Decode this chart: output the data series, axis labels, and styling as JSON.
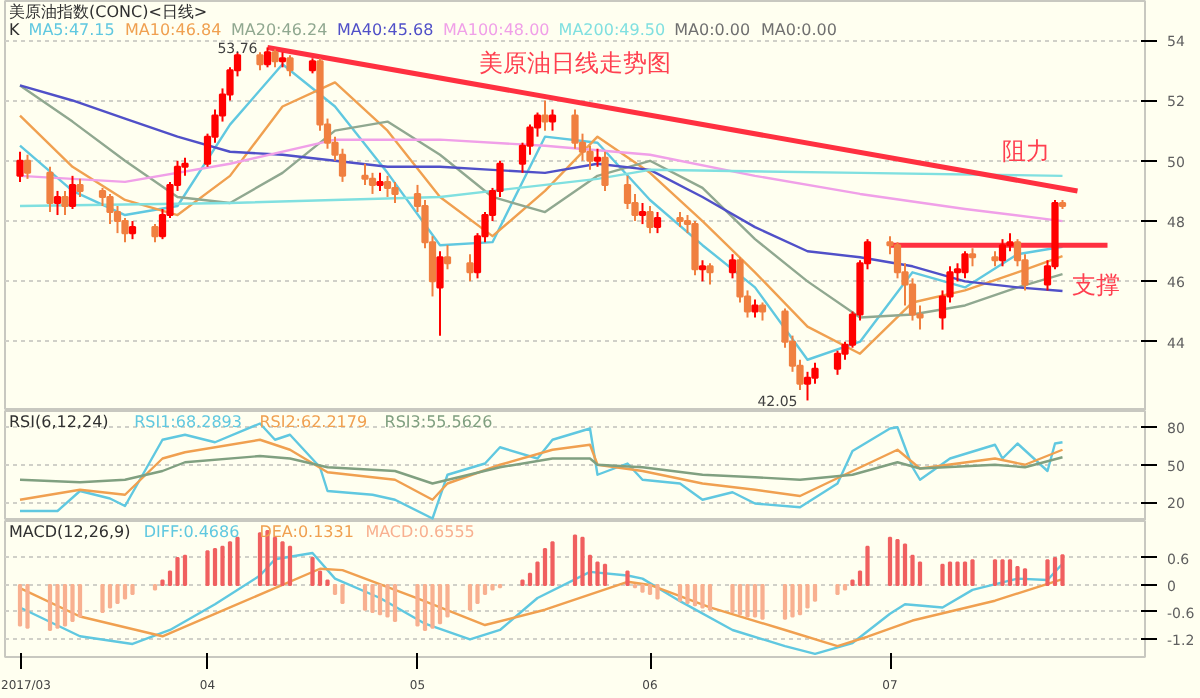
{
  "chart_data": [
    {
      "type": "candlestick",
      "title": "美原油日线走势图",
      "subtitle": "美原油指数(CONC)<日线>",
      "legend_title": "K",
      "legend": "top left",
      "tick_labels": "y",
      "grid": "y",
      "x": [
        "2017-03-09",
        "2017-03-10",
        "2017-03-13",
        "2017-03-14",
        "2017-03-15",
        "2017-03-16",
        "2017-03-17",
        "2017-03-20",
        "2017-03-21",
        "2017-03-22",
        "2017-03-23",
        "2017-03-24",
        "2017-03-27",
        "2017-03-28",
        "2017-03-29",
        "2017-03-30",
        "2017-03-31",
        "2017-04-03",
        "2017-04-04",
        "2017-04-05",
        "2017-04-06",
        "2017-04-07",
        "2017-04-10",
        "2017-04-11",
        "2017-04-12",
        "2017-04-13",
        "2017-04-14",
        "2017-04-17",
        "2017-04-18",
        "2017-04-19",
        "2017-04-20",
        "2017-04-21",
        "2017-04-24",
        "2017-04-25",
        "2017-04-26",
        "2017-04-27",
        "2017-04-28",
        "2017-05-01",
        "2017-05-02",
        "2017-05-03",
        "2017-05-04",
        "2017-05-05",
        "2017-05-08",
        "2017-05-09",
        "2017-05-10",
        "2017-05-11",
        "2017-05-12",
        "2017-05-15",
        "2017-05-16",
        "2017-05-17",
        "2017-05-18",
        "2017-05-19",
        "2017-05-22",
        "2017-05-23",
        "2017-05-24",
        "2017-05-25",
        "2017-05-26",
        "2017-05-29",
        "2017-05-30",
        "2017-05-31",
        "2017-06-01",
        "2017-06-02",
        "2017-06-05",
        "2017-06-06",
        "2017-06-07",
        "2017-06-08",
        "2017-06-09",
        "2017-06-12",
        "2017-06-13",
        "2017-06-14",
        "2017-06-15",
        "2017-06-16",
        "2017-06-19",
        "2017-06-20",
        "2017-06-21",
        "2017-06-22",
        "2017-06-23",
        "2017-06-26",
        "2017-06-27",
        "2017-06-28",
        "2017-06-29",
        "2017-06-30",
        "2017-07-03",
        "2017-07-04",
        "2017-07-05",
        "2017-07-06",
        "2017-07-07",
        "2017-07-10",
        "2017-07-11",
        "2017-07-12",
        "2017-07-13",
        "2017-07-14",
        "2017-07-17",
        "2017-07-18",
        "2017-07-19",
        "2017-07-20",
        "2017-07-21",
        "2017-07-24",
        "2017-07-25",
        "2017-07-26"
      ],
      "ohlc": [
        [
          49.5,
          50.3,
          49.3,
          50.0
        ],
        [
          50.0,
          50.2,
          49.4,
          49.6
        ],
        [
          49.6,
          49.8,
          48.3,
          48.6
        ],
        [
          48.6,
          49.0,
          48.2,
          48.8
        ],
        [
          48.8,
          49.0,
          48.2,
          48.5
        ],
        [
          48.5,
          49.5,
          48.4,
          49.2
        ],
        [
          49.2,
          49.4,
          48.8,
          49.0
        ],
        [
          49.0,
          49.1,
          48.5,
          48.8
        ],
        [
          48.8,
          48.9,
          47.9,
          48.3
        ],
        [
          48.3,
          48.5,
          47.6,
          48.0
        ],
        [
          48.0,
          48.1,
          47.3,
          47.6
        ],
        [
          47.6,
          48.0,
          47.4,
          47.8
        ],
        [
          47.8,
          47.9,
          47.3,
          47.5
        ],
        [
          47.5,
          48.4,
          47.4,
          48.2
        ],
        [
          48.2,
          49.3,
          48.1,
          49.2
        ],
        [
          49.2,
          50.0,
          49.0,
          49.8
        ],
        [
          49.8,
          50.1,
          49.5,
          49.9
        ],
        [
          49.9,
          50.9,
          49.8,
          50.8
        ],
        [
          50.8,
          51.7,
          50.6,
          51.5
        ],
        [
          51.5,
          52.4,
          51.3,
          52.2
        ],
        [
          52.2,
          53.1,
          52.0,
          53.0
        ],
        [
          53.0,
          53.6,
          52.8,
          53.5
        ],
        [
          53.5,
          53.6,
          53.0,
          53.2
        ],
        [
          53.2,
          53.76,
          53.1,
          53.6
        ],
        [
          53.6,
          53.7,
          53.1,
          53.3
        ],
        [
          53.3,
          53.6,
          53.1,
          53.4
        ],
        [
          53.4,
          53.5,
          52.8,
          53.0
        ],
        [
          53.0,
          53.4,
          52.9,
          53.3
        ],
        [
          53.3,
          53.4,
          51.0,
          51.2
        ],
        [
          51.2,
          51.4,
          50.4,
          50.6
        ],
        [
          50.6,
          50.8,
          50.0,
          50.2
        ],
        [
          50.2,
          50.4,
          49.3,
          49.5
        ],
        [
          49.5,
          49.9,
          49.2,
          49.4
        ],
        [
          49.4,
          49.6,
          48.9,
          49.2
        ],
        [
          49.2,
          49.6,
          49.0,
          49.3
        ],
        [
          49.3,
          49.5,
          48.8,
          49.1
        ],
        [
          49.1,
          49.3,
          48.6,
          48.9
        ],
        [
          48.9,
          49.2,
          48.3,
          48.5
        ],
        [
          48.5,
          48.7,
          47.1,
          47.3
        ],
        [
          47.3,
          47.5,
          45.5,
          46.0
        ],
        [
          45.8,
          47.0,
          44.2,
          46.8
        ],
        [
          46.8,
          47.2,
          46.4,
          46.6
        ],
        [
          46.6,
          46.9,
          46.0,
          46.3
        ],
        [
          46.3,
          47.6,
          46.1,
          47.5
        ],
        [
          47.5,
          48.3,
          47.3,
          48.2
        ],
        [
          48.2,
          49.1,
          48.0,
          49.0
        ],
        [
          49.0,
          50.0,
          48.8,
          49.9
        ],
        [
          49.9,
          50.6,
          49.6,
          50.5
        ],
        [
          50.5,
          51.2,
          50.2,
          51.1
        ],
        [
          51.1,
          51.6,
          50.8,
          51.5
        ],
        [
          51.5,
          52.0,
          51.0,
          51.3
        ],
        [
          51.3,
          51.7,
          51.0,
          51.5
        ],
        [
          51.5,
          51.7,
          50.4,
          50.6
        ],
        [
          50.6,
          50.9,
          50.0,
          50.3
        ],
        [
          50.3,
          50.5,
          49.7,
          50.0
        ],
        [
          50.0,
          50.4,
          49.8,
          50.1
        ],
        [
          50.1,
          50.3,
          49.0,
          49.2
        ],
        [
          49.2,
          49.5,
          48.4,
          48.6
        ],
        [
          48.6,
          48.9,
          48.0,
          48.2
        ],
        [
          48.2,
          48.6,
          47.9,
          48.3
        ],
        [
          48.3,
          48.5,
          47.6,
          47.8
        ],
        [
          47.8,
          48.3,
          47.6,
          48.1
        ],
        [
          48.1,
          48.3,
          47.8,
          48.0
        ],
        [
          48.0,
          48.2,
          47.6,
          47.9
        ],
        [
          47.9,
          48.0,
          46.2,
          46.4
        ],
        [
          46.4,
          46.7,
          46.0,
          46.5
        ],
        [
          46.5,
          46.6,
          45.9,
          46.3
        ],
        [
          46.3,
          46.9,
          46.1,
          46.7
        ],
        [
          46.7,
          46.8,
          45.3,
          45.5
        ],
        [
          45.5,
          45.7,
          44.8,
          45.0
        ],
        [
          45.0,
          45.4,
          44.8,
          45.2
        ],
        [
          45.2,
          45.3,
          44.7,
          45.0
        ],
        [
          45.0,
          45.1,
          43.8,
          44.0
        ],
        [
          44.0,
          44.2,
          43.0,
          43.2
        ],
        [
          43.2,
          43.4,
          42.4,
          42.6
        ],
        [
          42.6,
          43.0,
          42.05,
          42.8
        ],
        [
          42.8,
          43.3,
          42.6,
          43.1
        ],
        [
          43.1,
          43.7,
          42.9,
          43.6
        ],
        [
          43.6,
          44.0,
          43.4,
          43.9
        ],
        [
          43.9,
          45.0,
          43.8,
          44.9
        ],
        [
          44.9,
          46.7,
          44.7,
          46.6
        ],
        [
          46.6,
          47.4,
          46.4,
          47.3
        ],
        [
          47.3,
          47.5,
          46.9,
          47.2
        ],
        [
          47.2,
          47.3,
          46.1,
          46.3
        ],
        [
          46.3,
          46.6,
          45.2,
          45.9
        ],
        [
          45.9,
          46.1,
          44.7,
          44.9
        ],
        [
          44.9,
          45.2,
          44.4,
          44.8
        ],
        [
          44.8,
          45.7,
          44.4,
          45.5
        ],
        [
          45.5,
          46.5,
          45.3,
          46.3
        ],
        [
          46.3,
          46.6,
          46.0,
          46.4
        ],
        [
          46.3,
          47.0,
          46.1,
          46.9
        ],
        [
          46.9,
          47.1,
          46.5,
          46.8
        ],
        [
          46.8,
          47.0,
          46.5,
          46.7
        ],
        [
          46.7,
          47.4,
          46.5,
          47.2
        ],
        [
          47.2,
          47.6,
          47.0,
          47.3
        ],
        [
          47.3,
          47.4,
          46.5,
          46.7
        ],
        [
          46.7,
          46.9,
          45.7,
          45.9
        ],
        [
          45.9,
          46.7,
          45.7,
          46.5
        ],
        [
          46.5,
          48.7,
          46.4,
          48.6
        ],
        [
          48.6,
          48.7,
          48.4,
          48.5
        ]
      ],
      "colors": [
        "#ff0000",
        "#f08040",
        "#f08040",
        "#ff0000",
        "#f08040",
        "#ff0000",
        "#f08040",
        "#f08040",
        "#f08040",
        "#f08040",
        "#f08040",
        "#ff0000",
        "#f08040",
        "#ff0000",
        "#ff0000",
        "#ff0000",
        "#ff0000",
        "#ff0000",
        "#ff0000",
        "#ff0000",
        "#ff0000",
        "#ff0000",
        "#f08040",
        "#ff0000",
        "#f08040",
        "#ff0000",
        "#f08040",
        "#ff0000",
        "#f08040",
        "#f08040",
        "#f08040",
        "#f08040",
        "#f08040",
        "#f08040",
        "#ff0000",
        "#f08040",
        "#f08040",
        "#f08040",
        "#f08040",
        "#f08040",
        "#ff0000",
        "#f08040",
        "#f08040",
        "#ff0000",
        "#ff0000",
        "#ff0000",
        "#ff0000",
        "#ff0000",
        "#ff0000",
        "#ff0000",
        "#f08040",
        "#ff0000",
        "#f08040",
        "#f08040",
        "#f08040",
        "#ff0000",
        "#f08040",
        "#f08040",
        "#f08040",
        "#ff0000",
        "#f08040",
        "#ff0000",
        "#f08040",
        "#f08040",
        "#f08040",
        "#ff0000",
        "#f08040",
        "#ff0000",
        "#f08040",
        "#f08040",
        "#ff0000",
        "#f08040",
        "#f08040",
        "#f08040",
        "#f08040",
        "#ff0000",
        "#ff0000",
        "#ff0000",
        "#ff0000",
        "#ff0000",
        "#ff0000",
        "#ff0000",
        "#f08040",
        "#f08040",
        "#f08040",
        "#f08040",
        "#f08040",
        "#ff0000",
        "#ff0000",
        "#ff0000",
        "#ff0000",
        "#f08040",
        "#f08040",
        "#ff0000",
        "#ff0000",
        "#f08040",
        "#f08040",
        "#ff0000",
        "#ff0000",
        "#f08040"
      ],
      "series": [
        {
          "type": "line",
          "name": "MA5:47.15",
          "color": "#60c8e0",
          "x": [
            "2017-03-09",
            "2017-03-16",
            "2017-03-23",
            "2017-03-30",
            "2017-04-06",
            "2017-04-13",
            "2017-04-20",
            "2017-04-27",
            "2017-05-04",
            "2017-05-11",
            "2017-05-18",
            "2017-05-25",
            "2017-06-01",
            "2017-06-08",
            "2017-06-15",
            "2017-06-22",
            "2017-06-29",
            "2017-07-06",
            "2017-07-13",
            "2017-07-20",
            "2017-07-26"
          ],
          "values": [
            50.5,
            49.0,
            48.2,
            48.5,
            51.2,
            53.2,
            51.8,
            49.6,
            47.2,
            47.3,
            50.8,
            50.6,
            48.7,
            47.2,
            45.8,
            43.4,
            44.0,
            46.3,
            45.8,
            46.9,
            47.15
          ]
        },
        {
          "type": "line",
          "name": "MA10:46.84",
          "color": "#f0a050",
          "x": [
            "2017-03-09",
            "2017-03-16",
            "2017-03-23",
            "2017-03-30",
            "2017-04-06",
            "2017-04-13",
            "2017-04-20",
            "2017-04-27",
            "2017-05-04",
            "2017-05-11",
            "2017-05-18",
            "2017-05-25",
            "2017-06-01",
            "2017-06-08",
            "2017-06-15",
            "2017-06-22",
            "2017-06-29",
            "2017-07-06",
            "2017-07-13",
            "2017-07-20",
            "2017-07-26"
          ],
          "values": [
            51.5,
            49.8,
            48.7,
            48.2,
            49.5,
            51.8,
            52.6,
            51.0,
            48.8,
            47.5,
            49.0,
            50.8,
            49.6,
            48.0,
            46.3,
            44.5,
            43.6,
            45.3,
            45.7,
            46.3,
            46.84
          ]
        },
        {
          "type": "line",
          "name": "MA20:46.24",
          "color": "#90a890",
          "x": [
            "2017-03-09",
            "2017-03-16",
            "2017-03-23",
            "2017-03-30",
            "2017-04-06",
            "2017-04-13",
            "2017-04-20",
            "2017-04-27",
            "2017-05-04",
            "2017-05-11",
            "2017-05-18",
            "2017-05-25",
            "2017-06-01",
            "2017-06-08",
            "2017-06-15",
            "2017-06-22",
            "2017-06-29",
            "2017-07-06",
            "2017-07-13",
            "2017-07-20",
            "2017-07-26"
          ],
          "values": [
            52.5,
            51.3,
            50.0,
            48.8,
            48.6,
            49.6,
            51.0,
            51.3,
            50.2,
            48.8,
            48.3,
            49.5,
            50.0,
            49.1,
            47.4,
            46.0,
            44.8,
            44.9,
            45.2,
            45.8,
            46.24
          ]
        },
        {
          "type": "line",
          "name": "MA40:45.68",
          "color": "#5050c8",
          "x": [
            "2017-03-09",
            "2017-03-16",
            "2017-03-23",
            "2017-03-30",
            "2017-04-06",
            "2017-04-13",
            "2017-04-20",
            "2017-04-27",
            "2017-05-04",
            "2017-05-11",
            "2017-05-18",
            "2017-05-25",
            "2017-06-01",
            "2017-06-08",
            "2017-06-15",
            "2017-06-22",
            "2017-06-29",
            "2017-07-06",
            "2017-07-13",
            "2017-07-20",
            "2017-07-26"
          ],
          "values": [
            52.5,
            52.0,
            51.4,
            50.8,
            50.3,
            50.2,
            50.0,
            49.8,
            49.8,
            49.7,
            49.6,
            49.9,
            49.7,
            48.8,
            47.8,
            47.0,
            46.8,
            46.5,
            46.0,
            45.8,
            45.68
          ]
        },
        {
          "type": "line",
          "name": "MA100:48.00",
          "color": "#f0a0e8",
          "x": [
            "2017-03-09",
            "2017-03-23",
            "2017-04-06",
            "2017-04-20",
            "2017-05-04",
            "2017-05-18",
            "2017-06-01",
            "2017-06-15",
            "2017-06-29",
            "2017-07-13",
            "2017-07-26"
          ],
          "values": [
            49.5,
            49.3,
            49.9,
            50.7,
            50.7,
            50.5,
            50.2,
            49.5,
            48.9,
            48.4,
            48.0
          ]
        },
        {
          "type": "line",
          "name": "MA200:49.50",
          "color": "#80e0e0",
          "x": [
            "2017-03-09",
            "2017-04-06",
            "2017-05-04",
            "2017-05-25",
            "2017-06-01",
            "2017-06-29",
            "2017-07-26"
          ],
          "values": [
            48.5,
            48.6,
            48.8,
            49.4,
            49.7,
            49.6,
            49.5
          ]
        },
        {
          "type": "line",
          "color": "#ff3040",
          "x": [
            "2017-04-11",
            "2017-07-28"
          ],
          "values": [
            53.76,
            49.0
          ]
        },
        {
          "type": "line",
          "color": "#ff3040",
          "x": [
            "2017-07-03",
            "2017-08-01"
          ],
          "values": [
            47.2,
            47.2
          ]
        }
      ],
      "annotations": [
        "MA0:0.00",
        "MA0:0.00",
        {
          "text": "53.76",
          "x": "2017-04-11",
          "y": 53.76
        },
        {
          "text": "42.05",
          "x": "2017-06-22",
          "y": 42.05
        },
        {
          "text": "阻力",
          "x": "2017-07-28",
          "y": 49.0
        },
        {
          "text": "支撑",
          "x": "2017-08-01",
          "y": 47.2
        }
      ],
      "xlim": [
        "2017-03-07",
        "2017-08-06"
      ],
      "ylim": [
        41.7,
        55.3
      ],
      "yticks": [
        44,
        46,
        48,
        50,
        52,
        54
      ]
    },
    {
      "type": "line",
      "legend_title": "RSI(6,12,24)",
      "legend": "top left",
      "tick_labels": "y",
      "grid": "y",
      "series": [
        {
          "name": "RSI1:68.2893",
          "color": "#60c8e0",
          "x": [
            "2017-03-09",
            "2017-03-14",
            "2017-03-17",
            "2017-03-21",
            "2017-03-23",
            "2017-03-28",
            "2017-03-31",
            "2017-04-04",
            "2017-04-10",
            "2017-04-12",
            "2017-04-14",
            "2017-04-18",
            "2017-04-19",
            "2017-04-25",
            "2017-04-28",
            "2017-05-03",
            "2017-05-05",
            "2017-05-10",
            "2017-05-12",
            "2017-05-17",
            "2017-05-19",
            "2017-05-24",
            "2017-05-25",
            "2017-05-29",
            "2017-05-31",
            "2017-06-05",
            "2017-06-08",
            "2017-06-12",
            "2017-06-15",
            "2017-06-21",
            "2017-06-26",
            "2017-06-28",
            "2017-07-03",
            "2017-07-04",
            "2017-07-06",
            "2017-07-07",
            "2017-07-11",
            "2017-07-17",
            "2017-07-18",
            "2017-07-20",
            "2017-07-24",
            "2017-07-25",
            "2017-07-26"
          ],
          "values": [
            13,
            13,
            29,
            23,
            17,
            70,
            74,
            68,
            83,
            70,
            74,
            48,
            29,
            26,
            22,
            7,
            42,
            51,
            64,
            55,
            70,
            79,
            42,
            51,
            38,
            35,
            22,
            28,
            19,
            16,
            35,
            61,
            79,
            80,
            48,
            38,
            55,
            66,
            55,
            67,
            45,
            67,
            68
          ]
        },
        {
          "name": "RSI2:62.2179",
          "color": "#f0a050",
          "x": [
            "2017-03-09",
            "2017-03-17",
            "2017-03-23",
            "2017-03-28",
            "2017-03-31",
            "2017-04-10",
            "2017-04-14",
            "2017-04-19",
            "2017-04-28",
            "2017-05-03",
            "2017-05-05",
            "2017-05-12",
            "2017-05-19",
            "2017-05-24",
            "2017-05-25",
            "2017-05-31",
            "2017-06-08",
            "2017-06-15",
            "2017-06-21",
            "2017-06-28",
            "2017-07-04",
            "2017-07-07",
            "2017-07-17",
            "2017-07-21",
            "2017-07-26"
          ],
          "values": [
            22,
            30,
            26,
            55,
            60,
            70,
            62,
            44,
            38,
            22,
            35,
            50,
            62,
            66,
            50,
            45,
            35,
            30,
            25,
            45,
            62,
            47,
            55,
            50,
            62
          ]
        },
        {
          "name": "RSI3:55.5626",
          "color": "#80a080",
          "x": [
            "2017-03-09",
            "2017-03-17",
            "2017-03-23",
            "2017-03-28",
            "2017-03-31",
            "2017-04-10",
            "2017-04-14",
            "2017-04-19",
            "2017-04-28",
            "2017-05-03",
            "2017-05-12",
            "2017-05-19",
            "2017-05-24",
            "2017-05-25",
            "2017-05-31",
            "2017-06-08",
            "2017-06-15",
            "2017-06-21",
            "2017-06-28",
            "2017-07-04",
            "2017-07-07",
            "2017-07-17",
            "2017-07-21",
            "2017-07-26"
          ],
          "values": [
            38,
            36,
            38,
            45,
            52,
            57,
            55,
            48,
            45,
            35,
            48,
            55,
            55,
            50,
            48,
            42,
            40,
            38,
            42,
            52,
            47,
            50,
            48,
            56
          ]
        }
      ],
      "xlim": [
        "2017-03-07",
        "2017-08-06"
      ],
      "ylim": [
        5,
        93
      ],
      "yticks": [
        20,
        50,
        80
      ]
    },
    {
      "type": "line",
      "legend_title": "MACD(12,26,9)",
      "legend": "top left",
      "grid": "y",
      "x": [
        "2017-03-09",
        "2017-03-10",
        "2017-03-13",
        "2017-03-14",
        "2017-03-15",
        "2017-03-16",
        "2017-03-17",
        "2017-03-20",
        "2017-03-21",
        "2017-03-22",
        "2017-03-23",
        "2017-03-24",
        "2017-03-27",
        "2017-03-28",
        "2017-03-29",
        "2017-03-30",
        "2017-03-31",
        "2017-04-03",
        "2017-04-04",
        "2017-04-05",
        "2017-04-06",
        "2017-04-07",
        "2017-04-10",
        "2017-04-11",
        "2017-04-12",
        "2017-04-13",
        "2017-04-14",
        "2017-04-17",
        "2017-04-18",
        "2017-04-19",
        "2017-04-20",
        "2017-04-21",
        "2017-04-24",
        "2017-04-25",
        "2017-04-26",
        "2017-04-27",
        "2017-04-28",
        "2017-05-01",
        "2017-05-02",
        "2017-05-03",
        "2017-05-04",
        "2017-05-05",
        "2017-05-08",
        "2017-05-09",
        "2017-05-10",
        "2017-05-11",
        "2017-05-12",
        "2017-05-15",
        "2017-05-16",
        "2017-05-17",
        "2017-05-18",
        "2017-05-19",
        "2017-05-22",
        "2017-05-23",
        "2017-05-24",
        "2017-05-25",
        "2017-05-26",
        "2017-05-29",
        "2017-05-30",
        "2017-05-31",
        "2017-06-01",
        "2017-06-02",
        "2017-06-05",
        "2017-06-06",
        "2017-06-07",
        "2017-06-08",
        "2017-06-09",
        "2017-06-12",
        "2017-06-13",
        "2017-06-14",
        "2017-06-15",
        "2017-06-16",
        "2017-06-19",
        "2017-06-20",
        "2017-06-21",
        "2017-06-22",
        "2017-06-23",
        "2017-06-26",
        "2017-06-27",
        "2017-06-28",
        "2017-06-29",
        "2017-06-30",
        "2017-07-03",
        "2017-07-04",
        "2017-07-05",
        "2017-07-06",
        "2017-07-07",
        "2017-07-10",
        "2017-07-11",
        "2017-07-12",
        "2017-07-13",
        "2017-07-14",
        "2017-07-17",
        "2017-07-18",
        "2017-07-19",
        "2017-07-20",
        "2017-07-21",
        "2017-07-24",
        "2017-07-25",
        "2017-07-26"
      ],
      "series": [
        {
          "name": "DIFF:0.4686",
          "color": "#60c8e0",
          "x": [
            "2017-03-09",
            "2017-03-17",
            "2017-03-24",
            "2017-03-29",
            "2017-04-04",
            "2017-04-10",
            "2017-04-12",
            "2017-04-17",
            "2017-04-20",
            "2017-04-26",
            "2017-05-02",
            "2017-05-08",
            "2017-05-12",
            "2017-05-17",
            "2017-05-24",
            "2017-05-29",
            "2017-05-31",
            "2017-06-05",
            "2017-06-12",
            "2017-06-19",
            "2017-06-23",
            "2017-06-28",
            "2017-07-03",
            "2017-07-05",
            "2017-07-10",
            "2017-07-14",
            "2017-07-20",
            "2017-07-24",
            "2017-07-26"
          ],
          "values": [
            -0.5,
            -1.14,
            -1.31,
            -1.0,
            -0.43,
            0.21,
            0.57,
            0.71,
            0.14,
            -0.29,
            -0.86,
            -1.21,
            -1.0,
            -0.29,
            0.29,
            0.21,
            0.14,
            -0.36,
            -1.0,
            -1.36,
            -1.53,
            -1.29,
            -0.64,
            -0.43,
            -0.5,
            -0.11,
            0.14,
            0.11,
            0.47
          ]
        },
        {
          "name": "DEA:0.1331",
          "color": "#f0a050",
          "x": [
            "2017-03-09",
            "2017-03-17",
            "2017-03-28",
            "2017-04-06",
            "2017-04-18",
            "2017-04-21",
            "2017-05-01",
            "2017-05-10",
            "2017-05-18",
            "2017-05-29",
            "2017-06-01",
            "2017-06-09",
            "2017-06-19",
            "2017-06-26",
            "2017-06-30",
            "2017-07-06",
            "2017-07-17",
            "2017-07-26"
          ],
          "values": [
            -0.07,
            -0.7,
            -1.14,
            -0.5,
            0.36,
            0.33,
            -0.3,
            -0.89,
            -0.55,
            0.07,
            0.0,
            -0.5,
            -1.0,
            -1.36,
            -1.15,
            -0.79,
            -0.35,
            0.13
          ]
        },
        {
          "type": "bar",
          "name": "MACD:0.6555",
          "colors": [
            "#f8b090",
            "#f8b090",
            "#f8b090",
            "#f8b090",
            "#f8b090",
            "#f8b090",
            "#f8b090",
            "#f8b090",
            "#f8b090",
            "#f8b090",
            "#f8b090",
            "#f8b090",
            "#f8b090",
            "#f06060",
            "#f06060",
            "#f06060",
            "#f06060",
            "#f06060",
            "#f06060",
            "#f06060",
            "#f06060",
            "#f06060",
            "#f06060",
            "#f06060",
            "#f06060",
            "#f06060",
            "#f06060",
            "#f06060",
            "#f06060",
            "#f06060",
            "#f8b090",
            "#f8b090",
            "#f8b090",
            "#f8b090",
            "#f8b090",
            "#f8b090",
            "#f8b090",
            "#f8b090",
            "#f8b090",
            "#f8b090",
            "#f8b090",
            "#f8b090",
            "#f8b090",
            "#f8b090",
            "#f8b090",
            "#f8b090",
            "#f8b090",
            "#f06060",
            "#f06060",
            "#f06060",
            "#f06060",
            "#f06060",
            "#f06060",
            "#f06060",
            "#f06060",
            "#f06060",
            "#f06060",
            "#f06060",
            "#f8b090",
            "#f8b090",
            "#f8b090",
            "#f8b090",
            "#f8b090",
            "#f8b090",
            "#f8b090",
            "#f8b090",
            "#f8b090",
            "#f8b090",
            "#f8b090",
            "#f8b090",
            "#f8b090",
            "#f8b090",
            "#f8b090",
            "#f8b090",
            "#f8b090",
            "#f8b090",
            "#f8b090",
            "#f8b090",
            "#f8b090",
            "#f06060",
            "#f06060",
            "#f06060",
            "#f06060",
            "#f06060",
            "#f06060",
            "#f06060",
            "#f06060",
            "#f06060",
            "#f06060",
            "#f06060",
            "#f06060",
            "#f06060",
            "#f06060",
            "#f06060",
            "#f06060",
            "#f06060",
            "#f06060",
            "#f06060",
            "#f06060",
            "#f06060"
          ],
          "values": [
            -0.9,
            -0.95,
            -1.0,
            -0.95,
            -0.9,
            -0.8,
            -0.7,
            -0.6,
            -0.5,
            -0.4,
            -0.3,
            -0.2,
            -0.1,
            0.1,
            0.3,
            0.6,
            0.65,
            0.75,
            0.8,
            0.85,
            0.95,
            1.05,
            1.15,
            1.2,
            1.05,
            0.95,
            0.85,
            0.6,
            0.3,
            0.1,
            -0.2,
            -0.4,
            -0.55,
            -0.6,
            -0.65,
            -0.7,
            -0.8,
            -0.9,
            -1.0,
            -0.95,
            -0.85,
            -0.7,
            -0.55,
            -0.4,
            -0.2,
            -0.1,
            -0.05,
            0.1,
            0.25,
            0.5,
            0.8,
            0.95,
            1.1,
            1.05,
            0.65,
            0.5,
            0.45,
            0.3,
            -0.05,
            -0.15,
            -0.2,
            -0.3,
            -0.35,
            -0.4,
            -0.45,
            -0.5,
            -0.55,
            -0.6,
            -0.65,
            -0.7,
            -0.7,
            -0.75,
            -0.75,
            -0.7,
            -0.65,
            -0.5,
            -0.35,
            -0.2,
            -0.1,
            0.1,
            0.3,
            0.85,
            1.05,
            1.0,
            0.9,
            0.65,
            0.5,
            0.45,
            0.5,
            0.5,
            0.5,
            0.55,
            0.55,
            0.55,
            0.55,
            0.4,
            0.35,
            0.55,
            0.6,
            0.66
          ]
        }
      ],
      "xlim": [
        "2017-03-07",
        "2017-08-06"
      ],
      "xticks": [
        {
          "value": "2017-03-09",
          "label": "2017/03"
        },
        {
          "value": "2017-04-03",
          "label": "04"
        },
        {
          "value": "2017-05-01",
          "label": "05"
        },
        {
          "value": "2017-06-01",
          "label": "06"
        },
        {
          "value": "2017-07-03",
          "label": "07"
        }
      ],
      "ylim": [
        -1.6,
        1.42
      ],
      "yticks": [
        -1.2,
        -0.6,
        0,
        0.6
      ]
    }
  ]
}
